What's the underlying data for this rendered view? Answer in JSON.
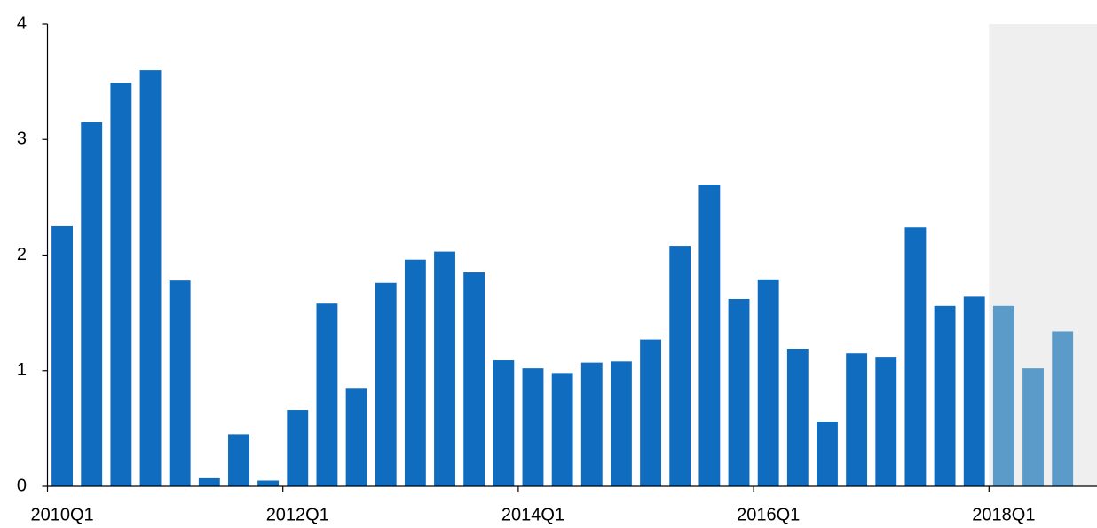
{
  "chart_data": {
    "type": "bar",
    "categories": [
      "2010Q1",
      null,
      null,
      null,
      null,
      null,
      null,
      null,
      "2012Q1",
      null,
      null,
      null,
      null,
      null,
      null,
      null,
      "2014Q1",
      null,
      null,
      null,
      null,
      null,
      null,
      null,
      "2016Q1",
      null,
      null,
      null,
      null,
      null,
      null,
      null,
      "2018Q1",
      null,
      null
    ],
    "values": [
      2.25,
      3.15,
      3.49,
      3.6,
      1.78,
      0.07,
      0.45,
      0.05,
      0.66,
      1.58,
      0.85,
      1.76,
      1.96,
      2.03,
      1.85,
      1.09,
      1.02,
      0.98,
      1.07,
      1.08,
      1.27,
      2.08,
      2.61,
      1.62,
      1.79,
      1.19,
      0.56,
      1.15,
      1.12,
      2.24,
      1.56,
      1.64,
      1.56,
      1.02,
      1.34
    ],
    "colors": [
      "#0f6cbf",
      "#0f6cbf",
      "#0f6cbf",
      "#0f6cbf",
      "#0f6cbf",
      "#0f6cbf",
      "#0f6cbf",
      "#0f6cbf",
      "#0f6cbf",
      "#0f6cbf",
      "#0f6cbf",
      "#0f6cbf",
      "#0f6cbf",
      "#0f6cbf",
      "#0f6cbf",
      "#0f6cbf",
      "#0f6cbf",
      "#0f6cbf",
      "#0f6cbf",
      "#0f6cbf",
      "#0f6cbf",
      "#0f6cbf",
      "#0f6cbf",
      "#0f6cbf",
      "#0f6cbf",
      "#0f6cbf",
      "#0f6cbf",
      "#0f6cbf",
      "#0f6cbf",
      "#0f6cbf",
      "#0f6cbf",
      "#0f6cbf",
      "#5b9bc9",
      "#5b9bc9",
      "#5b9bc9"
    ],
    "shade_from": "2018Q1",
    "shade_color": "#efefef",
    "ylim": [
      0,
      4
    ],
    "yticks": [
      0,
      1,
      2,
      3,
      4
    ],
    "grid": false
  }
}
